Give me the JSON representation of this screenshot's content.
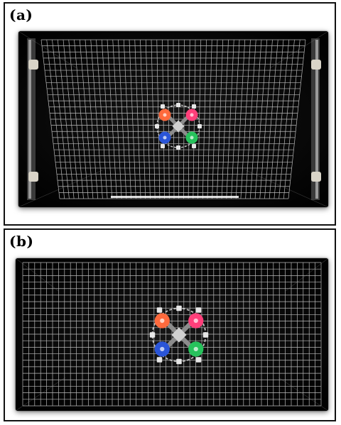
{
  "figure": {
    "panels": [
      {
        "id": "a",
        "label": "(a)",
        "image": {
          "subject": "wire-grid-over-robot-top-view",
          "background_color": "#050505",
          "grid_color": "#d8d8d8",
          "markers": [
            {
              "name": "orange-marker",
              "color": "#ff6a3d"
            },
            {
              "name": "pink-marker",
              "color": "#ff3f7a"
            },
            {
              "name": "blue-marker",
              "color": "#2a55d8"
            },
            {
              "name": "green-marker",
              "color": "#27c25c"
            }
          ]
        }
      },
      {
        "id": "b",
        "label": "(b)",
        "image": {
          "subject": "wire-grid-over-robot-cropped-view",
          "background_color": "#050505",
          "grid_color": "#d8d8d8",
          "markers": [
            {
              "name": "orange-marker",
              "color": "#ff6a3d"
            },
            {
              "name": "pink-marker",
              "color": "#ff3f7a"
            },
            {
              "name": "blue-marker",
              "color": "#2a55d8"
            },
            {
              "name": "green-marker",
              "color": "#27c25c"
            }
          ]
        }
      }
    ]
  }
}
